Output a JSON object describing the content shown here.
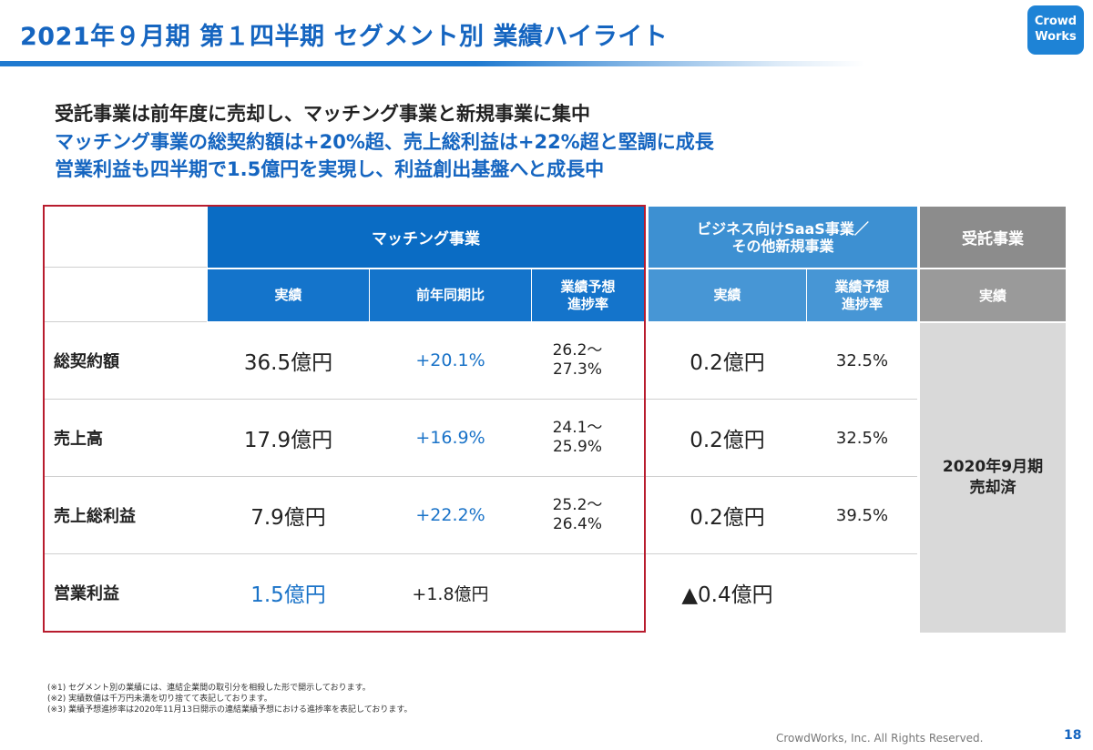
{
  "header": {
    "title": "2021年９月期 第１四半期 セグメント別 業績ハイライト",
    "logo_line1": "Crowd",
    "logo_line2": "Works"
  },
  "headlines": [
    "受託事業は前年度に売却し、マッチング事業と新規事業に集中",
    "マッチング事業の総契約額は+20%超、売上総利益は+22%超と堅調に成長",
    "営業利益も四半期で1.5億円を実現し、利益創出基盤へと成長中"
  ],
  "table": {
    "groups": {
      "matching": "マッチング事業",
      "saas_line1": "ビジネス向けSaaS事業／",
      "saas_line2": "その他新規事業",
      "contract": "受託事業"
    },
    "subheaders": {
      "actual": "実績",
      "yoy": "前年同期比",
      "progress_line1": "業績予想",
      "progress_line2": "進捗率"
    },
    "rows": [
      {
        "label": "総契約額",
        "m_actual": "36.5億円",
        "m_yoy": "+20.1%",
        "m_prog_line1": "26.2～",
        "m_prog_line2": "27.3%",
        "s_actual": "0.2億円",
        "s_prog": "32.5%"
      },
      {
        "label": "売上高",
        "m_actual": "17.9億円",
        "m_yoy": "+16.9%",
        "m_prog_line1": "24.1～",
        "m_prog_line2": "25.9%",
        "s_actual": "0.2億円",
        "s_prog": "32.5%"
      },
      {
        "label": "売上総利益",
        "m_actual": "7.9億円",
        "m_yoy": "+22.2%",
        "m_prog_line1": "25.2～",
        "m_prog_line2": "26.4%",
        "s_actual": "0.2億円",
        "s_prog": "39.5%"
      },
      {
        "label": "営業利益",
        "m_actual": "1.5億円",
        "m_yoy": "+1.8億円",
        "m_prog_line1": "",
        "m_prog_line2": "",
        "s_actual": "▲0.4億円",
        "s_prog": ""
      }
    ],
    "contract_status_line1": "2020年9月期",
    "contract_status_line2": "売却済"
  },
  "notes": [
    "(※1) セグメント別の業績には、連結企業間の取引分を相殺した形で開示しております。",
    "(※2) 実績数値は千万円未満を切り捨てて表記しております。",
    "(※3) 業績予想進捗率は2020年11月13日開示の連結業績予想における進捗率を表記しております。"
  ],
  "footer": {
    "copyright": "CrowdWorks, Inc. All Rights Reserved.",
    "page": "18"
  },
  "colors": {
    "brand_blue": "#1565c0",
    "header_blue": "#0a6cc4",
    "header_light_blue": "#3d90d2",
    "header_gray": "#8c8c8c",
    "highlight_red": "#b81c2e"
  }
}
